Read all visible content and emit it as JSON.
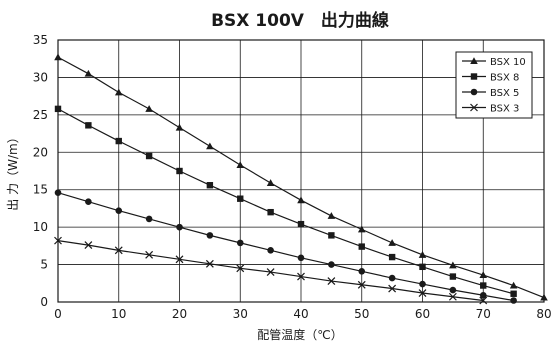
{
  "chart_data": {
    "type": "line",
    "title": "BSX 100V　出力曲線",
    "xlabel": "配管温度（℃）",
    "ylabel": "出 力（W/m）",
    "xlim": [
      0,
      80
    ],
    "ylim": [
      0,
      35
    ],
    "x_ticks": [
      0,
      10,
      20,
      30,
      40,
      50,
      60,
      70,
      80
    ],
    "y_ticks": [
      0,
      5,
      10,
      15,
      20,
      25,
      30,
      35
    ],
    "grid": true,
    "legend_position": "top-right",
    "line_color": "#1a1a1a",
    "series": [
      {
        "name": "BSX 10",
        "marker": "triangle",
        "x": [
          0,
          5,
          10,
          15,
          20,
          25,
          30,
          35,
          40,
          45,
          50,
          55,
          60,
          65,
          70,
          75,
          80
        ],
        "values": [
          32.7,
          30.5,
          28.0,
          25.8,
          23.3,
          20.8,
          18.3,
          15.9,
          13.6,
          11.5,
          9.7,
          7.9,
          6.3,
          4.9,
          3.6,
          2.2,
          0.6
        ]
      },
      {
        "name": "BSX 8",
        "marker": "square",
        "x": [
          0,
          5,
          10,
          15,
          20,
          25,
          30,
          35,
          40,
          45,
          50,
          55,
          60,
          65,
          70,
          75
        ],
        "values": [
          25.8,
          23.6,
          21.5,
          19.5,
          17.5,
          15.6,
          13.8,
          12.0,
          10.4,
          8.9,
          7.4,
          6.0,
          4.7,
          3.4,
          2.2,
          1.1
        ]
      },
      {
        "name": "BSX 5",
        "marker": "circle",
        "x": [
          0,
          5,
          10,
          15,
          20,
          25,
          30,
          35,
          40,
          45,
          50,
          55,
          60,
          65,
          70,
          75
        ],
        "values": [
          14.6,
          13.4,
          12.2,
          11.1,
          10.0,
          8.9,
          7.9,
          6.9,
          5.9,
          5.0,
          4.1,
          3.2,
          2.4,
          1.6,
          0.9,
          0.2
        ]
      },
      {
        "name": "BSX 3",
        "marker": "cross",
        "x": [
          0,
          5,
          10,
          15,
          20,
          25,
          30,
          35,
          40,
          45,
          50,
          55,
          60,
          65,
          70
        ],
        "values": [
          8.2,
          7.6,
          6.9,
          6.3,
          5.7,
          5.1,
          4.5,
          4.0,
          3.4,
          2.8,
          2.3,
          1.8,
          1.2,
          0.7,
          0.2
        ]
      }
    ]
  }
}
